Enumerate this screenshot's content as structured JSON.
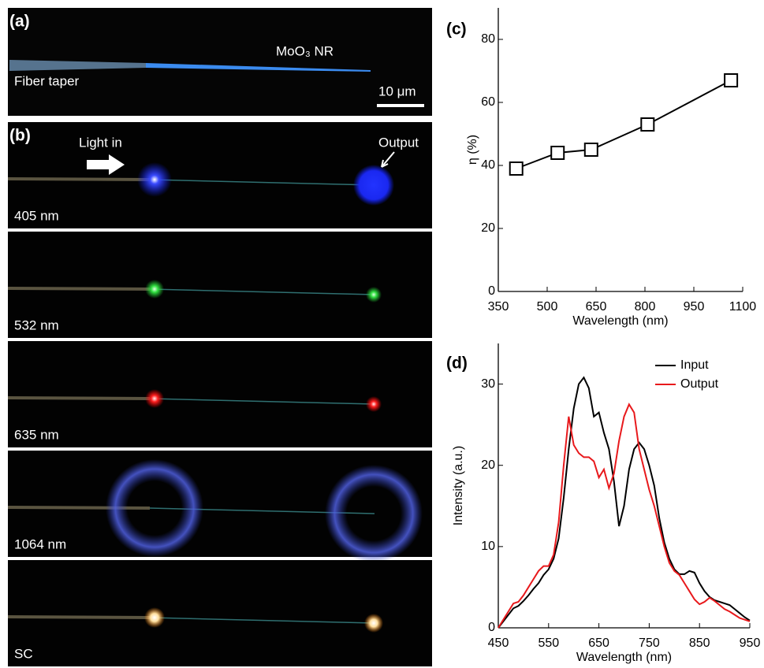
{
  "panels": {
    "a": {
      "label": "(a)",
      "fiber": "Fiber taper",
      "nanoribbon": "MoO₃ NR",
      "scale_bar": "10 μm"
    },
    "b": {
      "label": "(b)",
      "light_in": "Light in",
      "output": "Output",
      "wavelengths": [
        "405 nm",
        "532 nm",
        "635 nm",
        "1064 nm",
        "SC"
      ]
    }
  },
  "chart_data": [
    {
      "type": "line",
      "label": "(c)",
      "x": [
        405,
        532,
        635,
        808,
        1064
      ],
      "values": [
        39,
        44,
        45,
        53,
        67
      ],
      "color": "#000000",
      "marker": "square",
      "xlim": [
        350,
        1100
      ],
      "xticks": [
        350,
        500,
        650,
        800,
        950,
        1100
      ],
      "ylim": [
        0,
        90
      ],
      "yticks": [
        0,
        20,
        40,
        60,
        80
      ],
      "xlabel": "Wavelength (nm)",
      "ylabel": "η (%)"
    },
    {
      "type": "line",
      "label": "(d)",
      "x": [
        450,
        460,
        470,
        480,
        490,
        500,
        510,
        520,
        530,
        540,
        550,
        560,
        570,
        580,
        590,
        600,
        610,
        620,
        630,
        640,
        650,
        660,
        670,
        680,
        690,
        700,
        710,
        720,
        730,
        740,
        750,
        760,
        770,
        780,
        790,
        800,
        810,
        820,
        830,
        840,
        850,
        860,
        870,
        880,
        890,
        900,
        910,
        920,
        930,
        940,
        950
      ],
      "series": [
        {
          "name": "Input",
          "color": "#000000",
          "values": [
            0,
            0.8,
            1.6,
            2.4,
            2.7,
            3.3,
            4,
            4.8,
            5.5,
            6.5,
            7.2,
            8.5,
            11,
            16,
            22,
            27,
            30,
            30.8,
            29.5,
            26,
            26.5,
            24,
            22,
            18,
            12.5,
            15,
            19.5,
            22,
            22.8,
            22,
            20,
            17.5,
            13.5,
            10.5,
            8.5,
            7.2,
            6.6,
            6.6,
            7,
            6.8,
            5.5,
            4.5,
            3.8,
            3.4,
            3.2,
            3,
            2.8,
            2.3,
            1.8,
            1.3,
            0.9
          ]
        },
        {
          "name": "Output",
          "color": "#e8191c",
          "values": [
            0,
            1,
            2,
            3,
            3.2,
            4,
            5,
            6,
            7,
            7.6,
            7.6,
            9,
            13,
            20,
            26,
            22.5,
            21.5,
            21,
            21,
            20.5,
            18.5,
            19.5,
            17.2,
            19,
            23,
            26,
            27.5,
            26.5,
            22,
            19.5,
            17,
            15,
            12.5,
            10,
            8,
            7,
            6.5,
            5.5,
            4.5,
            3.5,
            2.9,
            3.2,
            3.7,
            3.3,
            2.8,
            2.3,
            2,
            1.6,
            1.2,
            1,
            0.8
          ]
        }
      ],
      "xlim": [
        450,
        950
      ],
      "xticks": [
        450,
        550,
        650,
        750,
        850,
        950
      ],
      "ylim": [
        0,
        35
      ],
      "yticks": [
        0,
        10,
        20,
        30
      ],
      "xlabel": "Wavelength (nm)",
      "ylabel": "Intensity (a.u.)",
      "legend": "upper right"
    }
  ]
}
